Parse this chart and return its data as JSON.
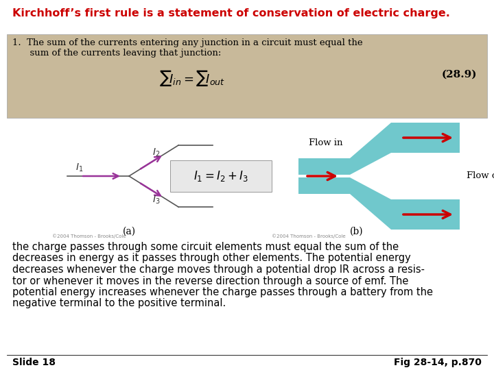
{
  "title": "Kirchhoff’s first rule is a statement of conservation of electric charge.",
  "title_color": "#cc0000",
  "title_fontsize": 11.5,
  "bg_color": "#ffffff",
  "box_bg_color": "#c8b99a",
  "box_text_line1": "1.  The sum of the currents entering any junction in a circuit must equal the",
  "box_text_line2": "      sum of the currents leaving that junction:",
  "box_eq_number": "(28.9)",
  "body_text": "the charge passes through some circuit elements must equal the sum of the\ndecreases in energy as it passes through other elements. The potential energy\ndecreases whenever the charge moves through a potential drop IR across a resis-\ntor or whenever it moves in the reverse direction through a source of emf. The\npotential energy increases whenever the charge passes through a battery from the\nnegative terminal to the positive terminal.",
  "footer_left": "Slide 18",
  "footer_right": "Fig 28-14, p.870",
  "footer_fontsize": 10,
  "body_fontsize": 10.5,
  "teal_color": "#70c8cc",
  "red_arrow_color": "#cc0000",
  "purple_color": "#993399",
  "copyright_text": "©2004 Thomson - Brooks/Cole"
}
